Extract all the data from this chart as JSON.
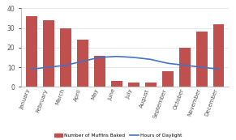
{
  "months": [
    "January",
    "February",
    "March",
    "April",
    "May",
    "June",
    "July",
    "August",
    "September",
    "October",
    "November",
    "December"
  ],
  "muffins": [
    36,
    34,
    30,
    24,
    16,
    3,
    2,
    2,
    8,
    20,
    28,
    32
  ],
  "daylight": [
    9,
    10,
    11,
    13,
    15,
    15.5,
    15,
    14,
    12,
    11,
    10,
    9
  ],
  "bar_color": "#c0504d",
  "line_color": "#4472c4",
  "ylim": [
    0,
    40
  ],
  "yticks": [
    0,
    10,
    20,
    30,
    40
  ],
  "bg_color": "#ffffff",
  "grid_color": "#dddddd",
  "legend_bar_label": "Number of Muffins Baked",
  "legend_line_label": "Hours of Daylight",
  "tick_rotation": 70,
  "tick_fontsize": 5.0,
  "ytick_fontsize": 5.5
}
